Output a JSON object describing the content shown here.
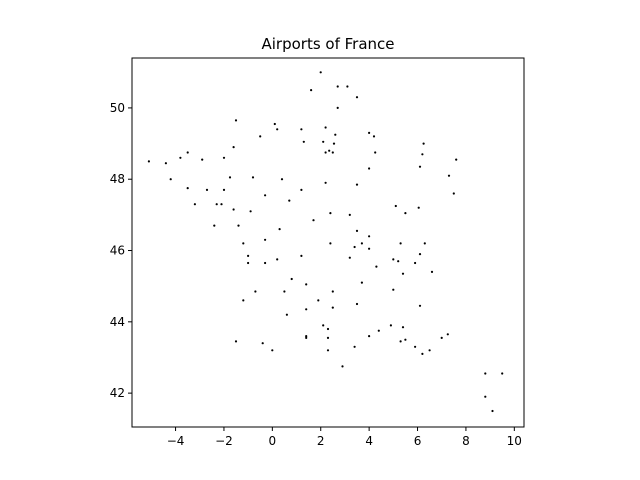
{
  "chart_data": {
    "type": "scatter",
    "title": "Airports of France",
    "xlabel": "",
    "ylabel": "",
    "xlim": [
      -5.8,
      10.4
    ],
    "ylim": [
      41.05,
      51.4
    ],
    "xticks": [
      -4,
      -2,
      0,
      2,
      4,
      6,
      8,
      10
    ],
    "yticks": [
      42,
      44,
      46,
      48,
      50
    ],
    "grid": false,
    "marker_color": "#000000",
    "points": [
      [
        2.0,
        51.0
      ],
      [
        1.6,
        50.5
      ],
      [
        2.7,
        50.6
      ],
      [
        3.1,
        50.6
      ],
      [
        3.5,
        50.3
      ],
      [
        2.7,
        50.0
      ],
      [
        -1.5,
        49.65
      ],
      [
        1.2,
        49.4
      ],
      [
        0.1,
        49.55
      ],
      [
        0.2,
        49.4
      ],
      [
        -0.5,
        49.2
      ],
      [
        2.2,
        49.45
      ],
      [
        2.6,
        49.25
      ],
      [
        4.0,
        49.3
      ],
      [
        4.2,
        49.2
      ],
      [
        1.3,
        49.05
      ],
      [
        2.1,
        49.05
      ],
      [
        2.55,
        49.0
      ],
      [
        2.35,
        48.8
      ],
      [
        2.2,
        48.75
      ],
      [
        2.5,
        48.75
      ],
      [
        4.25,
        48.75
      ],
      [
        6.25,
        49.0
      ],
      [
        6.2,
        48.7
      ],
      [
        7.6,
        48.55
      ],
      [
        -5.1,
        48.5
      ],
      [
        -4.4,
        48.45
      ],
      [
        -3.8,
        48.6
      ],
      [
        -3.5,
        48.75
      ],
      [
        -2.9,
        48.55
      ],
      [
        -2.0,
        48.6
      ],
      [
        -1.6,
        48.9
      ],
      [
        6.1,
        48.35
      ],
      [
        4.0,
        48.3
      ],
      [
        -4.2,
        48.0
      ],
      [
        -0.8,
        48.05
      ],
      [
        0.4,
        48.0
      ],
      [
        2.2,
        47.9
      ],
      [
        3.5,
        47.85
      ],
      [
        7.3,
        48.1
      ],
      [
        -3.5,
        47.75
      ],
      [
        -2.7,
        47.7
      ],
      [
        -2.0,
        47.7
      ],
      [
        -1.75,
        48.05
      ],
      [
        1.2,
        47.7
      ],
      [
        -0.3,
        47.55
      ],
      [
        7.5,
        47.6
      ],
      [
        -3.2,
        47.3
      ],
      [
        -2.3,
        47.3
      ],
      [
        -2.1,
        47.3
      ],
      [
        0.7,
        47.4
      ],
      [
        5.1,
        47.25
      ],
      [
        6.05,
        47.2
      ],
      [
        -1.6,
        47.15
      ],
      [
        -0.9,
        47.1
      ],
      [
        2.4,
        47.05
      ],
      [
        3.2,
        47.0
      ],
      [
        5.5,
        47.05
      ],
      [
        1.7,
        46.85
      ],
      [
        -2.4,
        46.7
      ],
      [
        -1.4,
        46.7
      ],
      [
        0.3,
        46.6
      ],
      [
        3.5,
        46.55
      ],
      [
        4.0,
        46.4
      ],
      [
        -0.3,
        46.3
      ],
      [
        -1.2,
        46.2
      ],
      [
        2.4,
        46.2
      ],
      [
        3.4,
        46.1
      ],
      [
        3.7,
        46.2
      ],
      [
        4.0,
        46.05
      ],
      [
        5.3,
        46.2
      ],
      [
        6.3,
        46.2
      ],
      [
        6.1,
        45.9
      ],
      [
        -1.0,
        45.85
      ],
      [
        3.2,
        45.8
      ],
      [
        5.0,
        45.75
      ],
      [
        5.2,
        45.7
      ],
      [
        5.9,
        45.65
      ],
      [
        -1.0,
        45.65
      ],
      [
        -0.3,
        45.65
      ],
      [
        0.2,
        45.75
      ],
      [
        1.2,
        45.85
      ],
      [
        4.3,
        45.55
      ],
      [
        6.6,
        45.4
      ],
      [
        5.4,
        45.35
      ],
      [
        0.8,
        45.2
      ],
      [
        1.4,
        45.05
      ],
      [
        3.7,
        45.1
      ],
      [
        -0.7,
        44.85
      ],
      [
        0.5,
        44.85
      ],
      [
        2.5,
        44.85
      ],
      [
        5.0,
        44.9
      ],
      [
        -1.2,
        44.6
      ],
      [
        1.9,
        44.6
      ],
      [
        3.5,
        44.5
      ],
      [
        6.1,
        44.45
      ],
      [
        1.4,
        44.35
      ],
      [
        2.5,
        44.4
      ],
      [
        0.6,
        44.2
      ],
      [
        1.4,
        43.6
      ],
      [
        1.4,
        43.55
      ],
      [
        2.1,
        43.9
      ],
      [
        2.3,
        43.8
      ],
      [
        4.4,
        43.75
      ],
      [
        4.9,
        43.9
      ],
      [
        5.4,
        43.85
      ],
      [
        4.0,
        43.6
      ],
      [
        2.3,
        43.55
      ],
      [
        7.0,
        43.55
      ],
      [
        7.25,
        43.65
      ],
      [
        5.3,
        43.45
      ],
      [
        5.5,
        43.5
      ],
      [
        5.9,
        43.3
      ],
      [
        6.5,
        43.2
      ],
      [
        6.2,
        43.1
      ],
      [
        -1.5,
        43.45
      ],
      [
        -0.4,
        43.4
      ],
      [
        0.0,
        43.2
      ],
      [
        2.3,
        43.2
      ],
      [
        3.4,
        43.3
      ],
      [
        2.9,
        42.75
      ],
      [
        8.8,
        42.55
      ],
      [
        9.5,
        42.55
      ],
      [
        8.8,
        41.9
      ],
      [
        9.1,
        41.5
      ]
    ]
  }
}
